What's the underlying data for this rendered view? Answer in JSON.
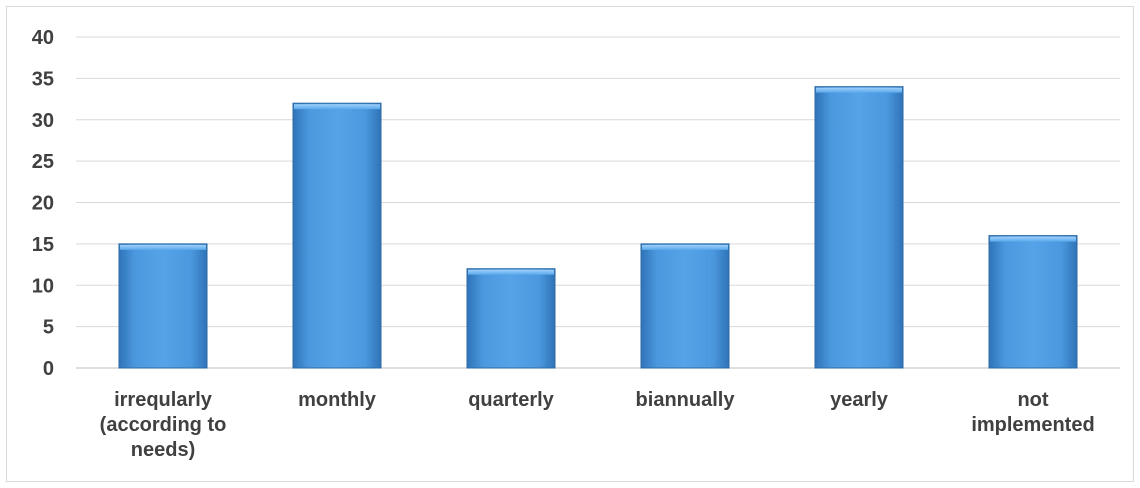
{
  "chart_data": {
    "type": "bar",
    "title": "",
    "xlabel": "",
    "ylabel": "",
    "categories": [
      [
        "irreqularly",
        "(according to",
        "needs)"
      ],
      [
        "monthly"
      ],
      [
        "quarterly"
      ],
      [
        "biannually"
      ],
      [
        "yearly"
      ],
      [
        "not",
        "implemented"
      ]
    ],
    "values": [
      15,
      32,
      12,
      15,
      34,
      16
    ],
    "ylim": [
      0,
      40
    ],
    "yticks": [
      "0",
      "5",
      "10",
      "15",
      "20",
      "25",
      "30",
      "35",
      "40"
    ],
    "grid": true,
    "legend": "none",
    "bar_color": "#4a94d8",
    "bar_edge_color": "#2b6aa6",
    "grid_color": "#d9d9d9"
  }
}
